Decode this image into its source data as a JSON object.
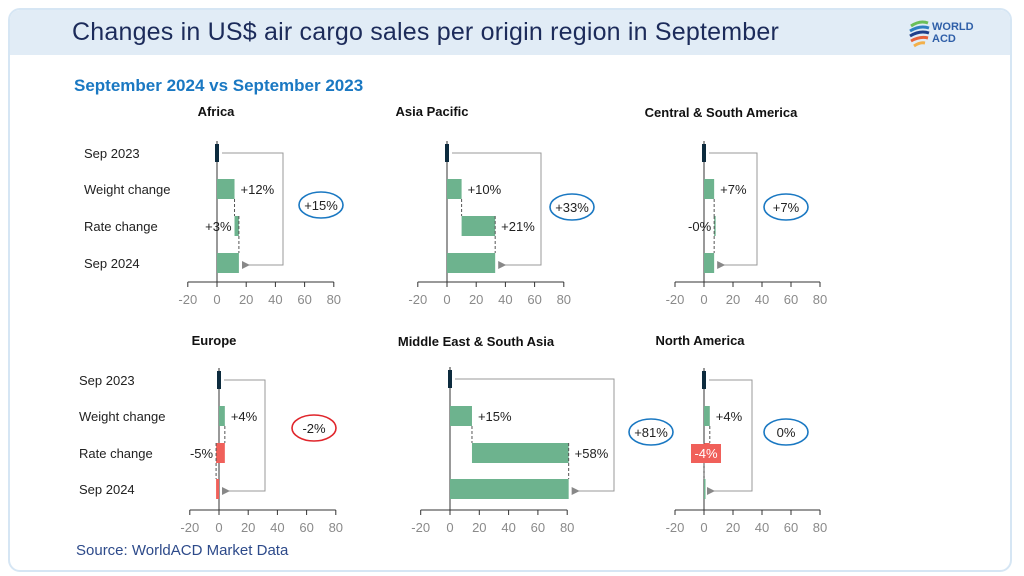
{
  "header": {
    "title": "Changes in US$ air cargo sales per origin region in September",
    "logo_text": [
      "WORLD",
      "ACD"
    ]
  },
  "subtitle": "September 2024 vs September 2023",
  "source": "Source: WorldACD Market Data",
  "colors": {
    "increase": "#6db38e",
    "decrease": "#f0605a",
    "index": "#0d2b3e",
    "circle_positive": "#1a78c2",
    "circle_negative": "#e0252b"
  },
  "chart_data": [
    {
      "type": "bar",
      "subtype": "waterfall",
      "title": "Africa",
      "categories": [
        "Sep 2023",
        "Weight change",
        "Rate change",
        "Sep 2024"
      ],
      "weight_change": 12,
      "rate_change": 3,
      "total_change": 15,
      "labels": [
        "+12%",
        "+3%"
      ],
      "total_label": "+15%",
      "xlim": [
        -20,
        80
      ],
      "xticks": [
        "-20",
        "0",
        "20",
        "40",
        "60",
        "80"
      ]
    },
    {
      "type": "bar",
      "subtype": "waterfall",
      "title": "Asia Pacific",
      "categories": [
        "Sep 2023",
        "Weight change",
        "Rate change",
        "Sep 2024"
      ],
      "weight_change": 10,
      "rate_change": 21,
      "total_change": 33,
      "labels": [
        "+10%",
        "+21%"
      ],
      "total_label": "+33%",
      "xlim": [
        -20,
        80
      ],
      "xticks": [
        "-20",
        "0",
        "20",
        "40",
        "60",
        "80"
      ]
    },
    {
      "type": "bar",
      "subtype": "waterfall",
      "title": "Central & South America",
      "categories": [
        "Sep 2023",
        "Weight change",
        "Rate change",
        "Sep 2024"
      ],
      "weight_change": 7,
      "rate_change": 0,
      "total_change": 7,
      "labels": [
        "+7%",
        "-0%"
      ],
      "total_label": "+7%",
      "xlim": [
        -20,
        80
      ],
      "xticks": [
        "-20",
        "0",
        "20",
        "40",
        "60",
        "80"
      ]
    },
    {
      "type": "bar",
      "subtype": "waterfall",
      "title": "Europe",
      "categories": [
        "Sep 2023",
        "Weight change",
        "Rate change",
        "Sep 2024"
      ],
      "weight_change": 4,
      "rate_change": -5,
      "total_change": -2,
      "labels": [
        "+4%",
        "-5%"
      ],
      "total_label": "-2%",
      "xlim": [
        -20,
        80
      ],
      "xticks": [
        "-20",
        "0",
        "20",
        "40",
        "60",
        "80"
      ]
    },
    {
      "type": "bar",
      "subtype": "waterfall",
      "title": "Middle East & South Asia",
      "categories": [
        "Sep 2023",
        "Weight change",
        "Rate change",
        "Sep 2024"
      ],
      "weight_change": 15,
      "rate_change": 58,
      "total_change": 81,
      "labels": [
        "+15%",
        "+58%"
      ],
      "total_label": "+81%",
      "xlim": [
        -20,
        80
      ],
      "xticks": [
        "-20",
        "0",
        "20",
        "40",
        "60",
        "80"
      ]
    },
    {
      "type": "bar",
      "subtype": "waterfall",
      "title": "North America",
      "categories": [
        "Sep 2023",
        "Weight change",
        "Rate change",
        "Sep 2024"
      ],
      "weight_change": 4,
      "rate_change": -4,
      "total_change": 0,
      "labels": [
        "+4%",
        "-4%"
      ],
      "total_label": "0%",
      "xlim": [
        -20,
        80
      ],
      "xticks": [
        "-20",
        "0",
        "20",
        "40",
        "60",
        "80"
      ]
    }
  ]
}
